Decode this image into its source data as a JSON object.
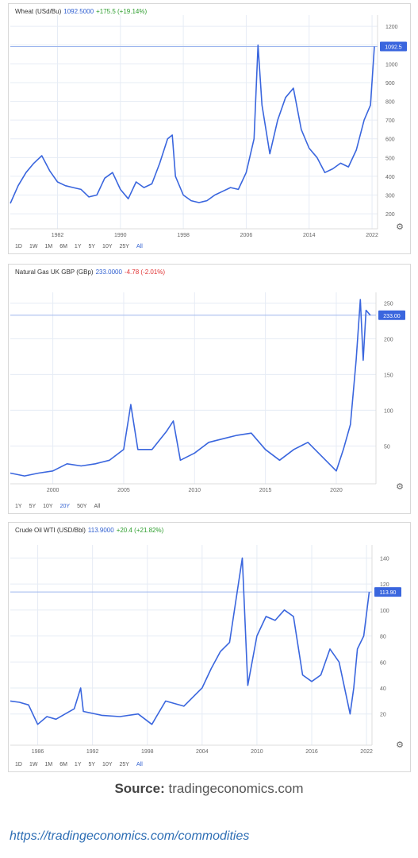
{
  "colors": {
    "line": "#3a66de",
    "price_tag": "#3a66de",
    "up": "#2e9e2e",
    "down": "#e03030",
    "grid": "#e6ecf5"
  },
  "chart_data": [
    {
      "type": "line",
      "title": "Wheat (USd/Bu)",
      "price": "1092.5000",
      "change": "+175.5 (+19.14%)",
      "change_direction": "up",
      "price_tag": "1092.5",
      "last_value": 1092.5,
      "xlim": [
        1976,
        2022.7
      ],
      "ylim": [
        120,
        1260
      ],
      "x_ticks": [
        1982,
        1990,
        1998,
        2006,
        2014,
        2022
      ],
      "x_tick_labels": [
        "1982",
        "1990",
        "1998",
        "2006",
        "2014",
        "2022"
      ],
      "y_ticks": [
        200,
        300,
        400,
        500,
        600,
        700,
        800,
        900,
        1000,
        1100,
        1200
      ],
      "y_tick_labels": [
        "200",
        "300",
        "400",
        "500",
        "600",
        "700",
        "800",
        "900",
        "1000",
        "1100",
        "1200"
      ],
      "grid": true,
      "x": [
        1976,
        1977,
        1978,
        1979,
        1980,
        1981,
        1982,
        1983,
        1984,
        1985,
        1986,
        1987,
        1988,
        1989,
        1990,
        1991,
        1992,
        1993,
        1994,
        1995,
        1996,
        1996.6,
        1997,
        1998,
        1999,
        2000,
        2001,
        2002,
        2003,
        2004,
        2005,
        2006,
        2007,
        2007.5,
        2008,
        2009,
        2010,
        2011,
        2012,
        2013,
        2014,
        2015,
        2016,
        2017,
        2018,
        2019,
        2020,
        2021,
        2021.8,
        2022.3
      ],
      "y": [
        255,
        350,
        420,
        470,
        510,
        430,
        370,
        350,
        340,
        330,
        290,
        300,
        390,
        420,
        330,
        280,
        370,
        340,
        360,
        470,
        600,
        620,
        400,
        300,
        270,
        260,
        270,
        300,
        320,
        340,
        330,
        420,
        600,
        1100,
        780,
        520,
        700,
        820,
        870,
        650,
        550,
        500,
        420,
        440,
        470,
        450,
        540,
        700,
        780,
        1092.5
      ]
    },
    {
      "type": "line",
      "title": "Natural Gas UK GBP (GBp)",
      "price": "233.0000",
      "change": "-4.78 (-2.01%)",
      "change_direction": "down",
      "price_tag": "233.00",
      "last_value": 233,
      "xlim": [
        1997,
        2022.8
      ],
      "ylim": [
        -3,
        265
      ],
      "x_ticks": [
        2000,
        2005,
        2010,
        2015,
        2020
      ],
      "x_tick_labels": [
        "2000",
        "2005",
        "2010",
        "2015",
        "2020"
      ],
      "y_ticks": [
        50,
        100,
        150,
        200,
        250
      ],
      "y_tick_labels": [
        "50",
        "100",
        "150",
        "200",
        "250"
      ],
      "grid": true,
      "x": [
        1997,
        1998,
        1999,
        2000,
        2001,
        2002,
        2003,
        2004,
        2005,
        2005.5,
        2006,
        2007,
        2008,
        2008.5,
        2009,
        2010,
        2011,
        2012,
        2013,
        2014,
        2015,
        2016,
        2017,
        2018,
        2019,
        2020,
        2020.5,
        2021,
        2021.4,
        2021.7,
        2021.9,
        2022.1,
        2022.4
      ],
      "y": [
        12,
        8,
        12,
        15,
        25,
        22,
        25,
        30,
        45,
        108,
        45,
        45,
        70,
        85,
        30,
        40,
        55,
        60,
        65,
        68,
        45,
        30,
        45,
        55,
        35,
        15,
        45,
        80,
        170,
        255,
        170,
        240,
        233
      ]
    },
    {
      "type": "line",
      "title": "Crude Oil WTI (USD/Bbl)",
      "price": "113.9000",
      "change": "+20.4 (+21.82%)",
      "change_direction": "up",
      "price_tag": "113.90",
      "last_value": 113.9,
      "xlim": [
        1983,
        2022.6
      ],
      "ylim": [
        -4,
        150
      ],
      "x_ticks": [
        1986,
        1992,
        1998,
        2004,
        2010,
        2016,
        2022
      ],
      "x_tick_labels": [
        "1986",
        "1992",
        "1998",
        "2004",
        "2010",
        "2016",
        "2022"
      ],
      "y_ticks": [
        20,
        40,
        60,
        80,
        100,
        120,
        140
      ],
      "y_tick_labels": [
        "20",
        "40",
        "60",
        "80",
        "100",
        "120",
        "140"
      ],
      "grid": true,
      "x": [
        1983,
        1984,
        1985,
        1986,
        1987,
        1988,
        1989,
        1990,
        1990.7,
        1991,
        1993,
        1995,
        1997,
        1998.5,
        1999,
        2000,
        2002,
        2004,
        2005,
        2006,
        2007,
        2008.4,
        2009,
        2010,
        2011,
        2012,
        2013,
        2014,
        2015,
        2016,
        2017,
        2018,
        2019,
        2020.2,
        2020.6,
        2021,
        2021.7,
        2022.3
      ],
      "y": [
        30,
        29,
        27,
        12,
        18,
        16,
        20,
        24,
        40,
        22,
        19,
        18,
        20,
        12,
        18,
        30,
        26,
        40,
        55,
        68,
        75,
        140,
        42,
        80,
        95,
        92,
        100,
        95,
        50,
        45,
        50,
        70,
        60,
        20,
        40,
        70,
        80,
        113.9
      ]
    }
  ],
  "ranges": [
    {
      "items": [
        "1D",
        "1W",
        "1M",
        "6M",
        "1Y",
        "5Y",
        "10Y",
        "25Y",
        "All"
      ],
      "active": "All"
    },
    {
      "items": [
        "1Y",
        "5Y",
        "10Y",
        "20Y",
        "50Y",
        "All"
      ],
      "active": "20Y"
    },
    {
      "items": [
        "1D",
        "1W",
        "1M",
        "6M",
        "1Y",
        "5Y",
        "10Y",
        "25Y",
        "All"
      ],
      "active": "All"
    }
  ],
  "settings_icon": "gear-icon",
  "source": {
    "label": "Source:",
    "text": "tradingeconomics.com"
  },
  "link": "https://tradingeconomics.com/commodities"
}
